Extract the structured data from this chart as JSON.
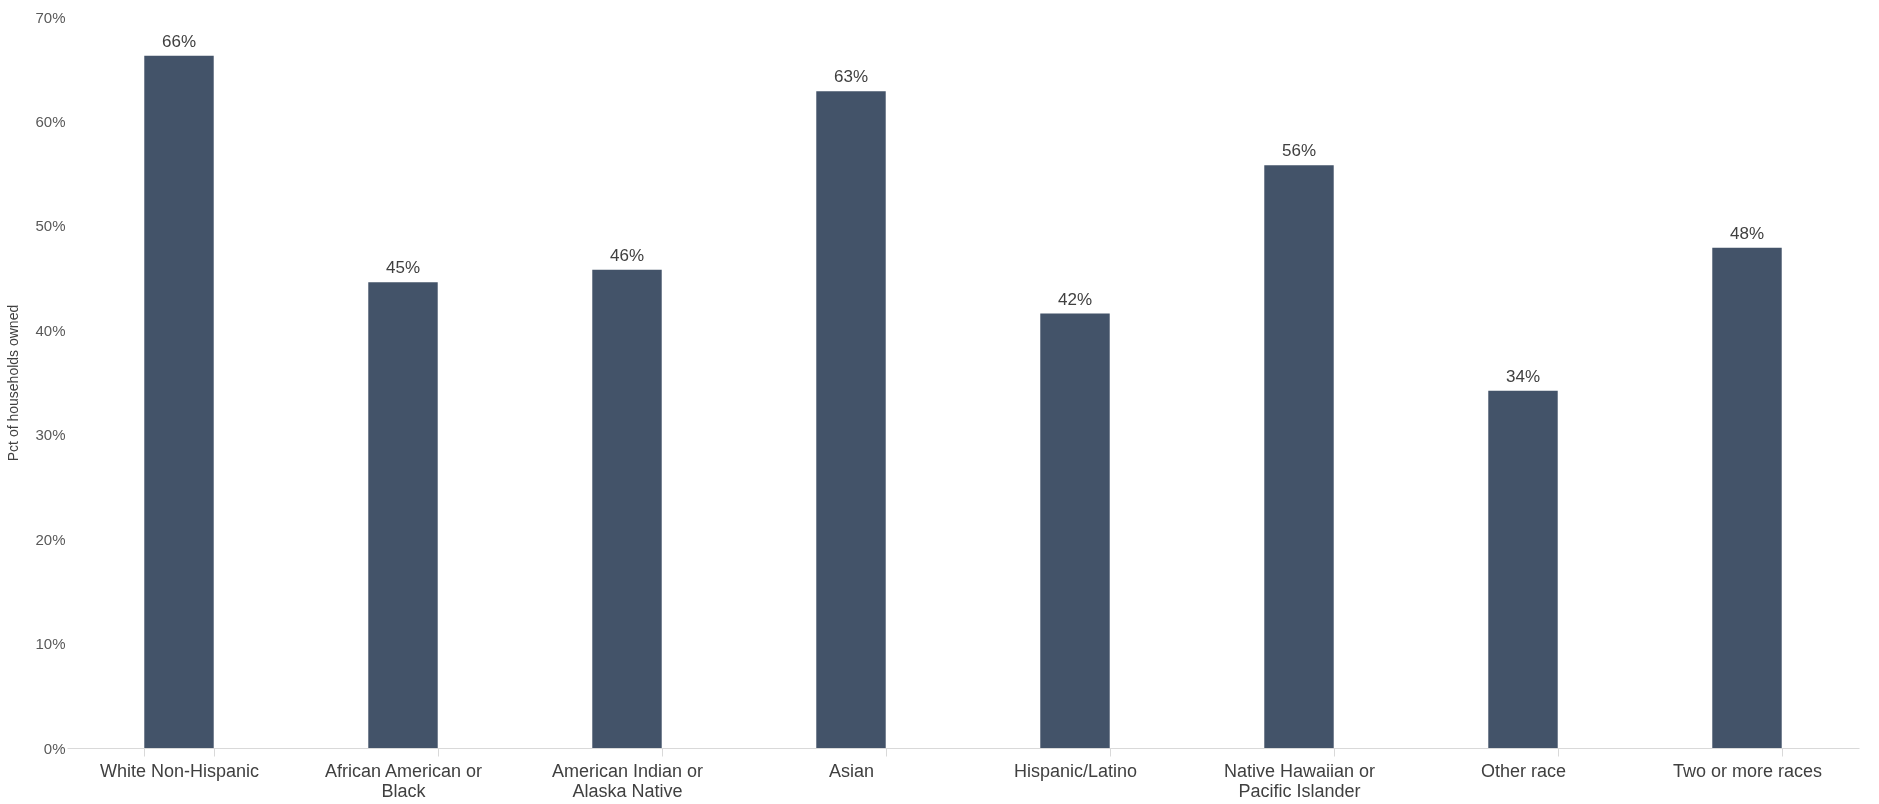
{
  "chart_data": {
    "type": "bar",
    "ylabel": "Pct of households owned",
    "categories": [
      "White Non-Hispanic",
      "African American or Black",
      "American Indian or Alaska Native",
      "Asian",
      "Hispanic/Latino",
      "Native Hawaiian or Pacific Islander",
      "Other race",
      "Two or more races"
    ],
    "values": [
      66.3,
      44.6,
      45.8,
      62.9,
      41.6,
      55.8,
      34.2,
      47.9
    ],
    "value_labels": [
      "66%",
      "45%",
      "46%",
      "63%",
      "42%",
      "56%",
      "34%",
      "48%"
    ],
    "color": "#435369",
    "ylim": [
      0,
      70
    ],
    "yticks": [
      {
        "value": 0,
        "label": "0%"
      },
      {
        "value": 10,
        "label": "10%"
      },
      {
        "value": 20,
        "label": "20%"
      },
      {
        "value": 30,
        "label": "30%"
      },
      {
        "value": 40,
        "label": "40%"
      },
      {
        "value": 50,
        "label": "50%"
      },
      {
        "value": 60,
        "label": "60%"
      },
      {
        "value": 70,
        "label": "70%"
      }
    ]
  }
}
